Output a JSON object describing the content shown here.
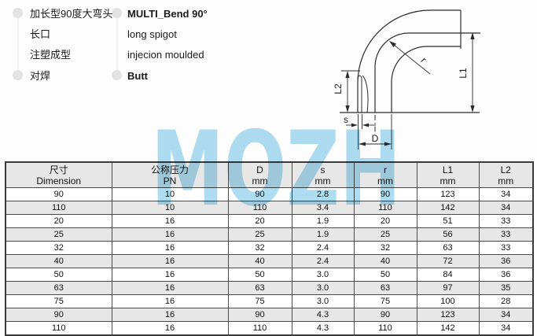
{
  "notes": [
    {
      "zh": "加长型90度大弯头",
      "en": "MULTI_Bend 90°"
    },
    {
      "zh": "长口",
      "en": "long spigot"
    },
    {
      "zh": "注塑成型",
      "en": "injecion moulded"
    },
    {
      "zh": "对焊",
      "en": "Butt"
    }
  ],
  "watermark": {
    "text": "MOZH",
    "color": "#a7d9ef"
  },
  "diagram": {
    "labels": {
      "L1": "L1",
      "L2": "L2",
      "s": "s",
      "D": "D",
      "r": "r"
    }
  },
  "table": {
    "columns": [
      {
        "line1": "尺寸",
        "line2": "Dimension"
      },
      {
        "line1": "公称压力",
        "line2": "PN"
      },
      {
        "line1": "D",
        "line2": "mm"
      },
      {
        "line1": "s",
        "line2": "mm"
      },
      {
        "line1": "r",
        "line2": "mm"
      },
      {
        "line1": "L1",
        "line2": "mm"
      },
      {
        "line1": "L2",
        "line2": "mm"
      }
    ],
    "rows": [
      [
        "90",
        "10",
        "90",
        "2.8",
        "90",
        "123",
        "34"
      ],
      [
        "110",
        "10",
        "110",
        "3.4",
        "110",
        "142",
        "34"
      ],
      [
        "20",
        "16",
        "20",
        "1.9",
        "20",
        "51",
        "33"
      ],
      [
        "25",
        "16",
        "25",
        "1.9",
        "25",
        "56",
        "33"
      ],
      [
        "32",
        "16",
        "32",
        "2.4",
        "32",
        "63",
        "33"
      ],
      [
        "40",
        "16",
        "40",
        "2.4",
        "40",
        "72",
        "36"
      ],
      [
        "50",
        "16",
        "50",
        "3.0",
        "50",
        "84",
        "36"
      ],
      [
        "63",
        "16",
        "63",
        "3.0",
        "63",
        "97",
        "35"
      ],
      [
        "75",
        "16",
        "75",
        "3.0",
        "75",
        "100",
        "28"
      ],
      [
        "90",
        "16",
        "90",
        "4.3",
        "90",
        "123",
        "34"
      ],
      [
        "110",
        "16",
        "110",
        "4.3",
        "110",
        "142",
        "34"
      ]
    ]
  },
  "colors": {
    "watermark_blue": "#a7d9ef",
    "row_alt_gray": "#e7e7e7",
    "border_dark": "#3b3b3b",
    "line_dark": "#2b2b2b"
  }
}
